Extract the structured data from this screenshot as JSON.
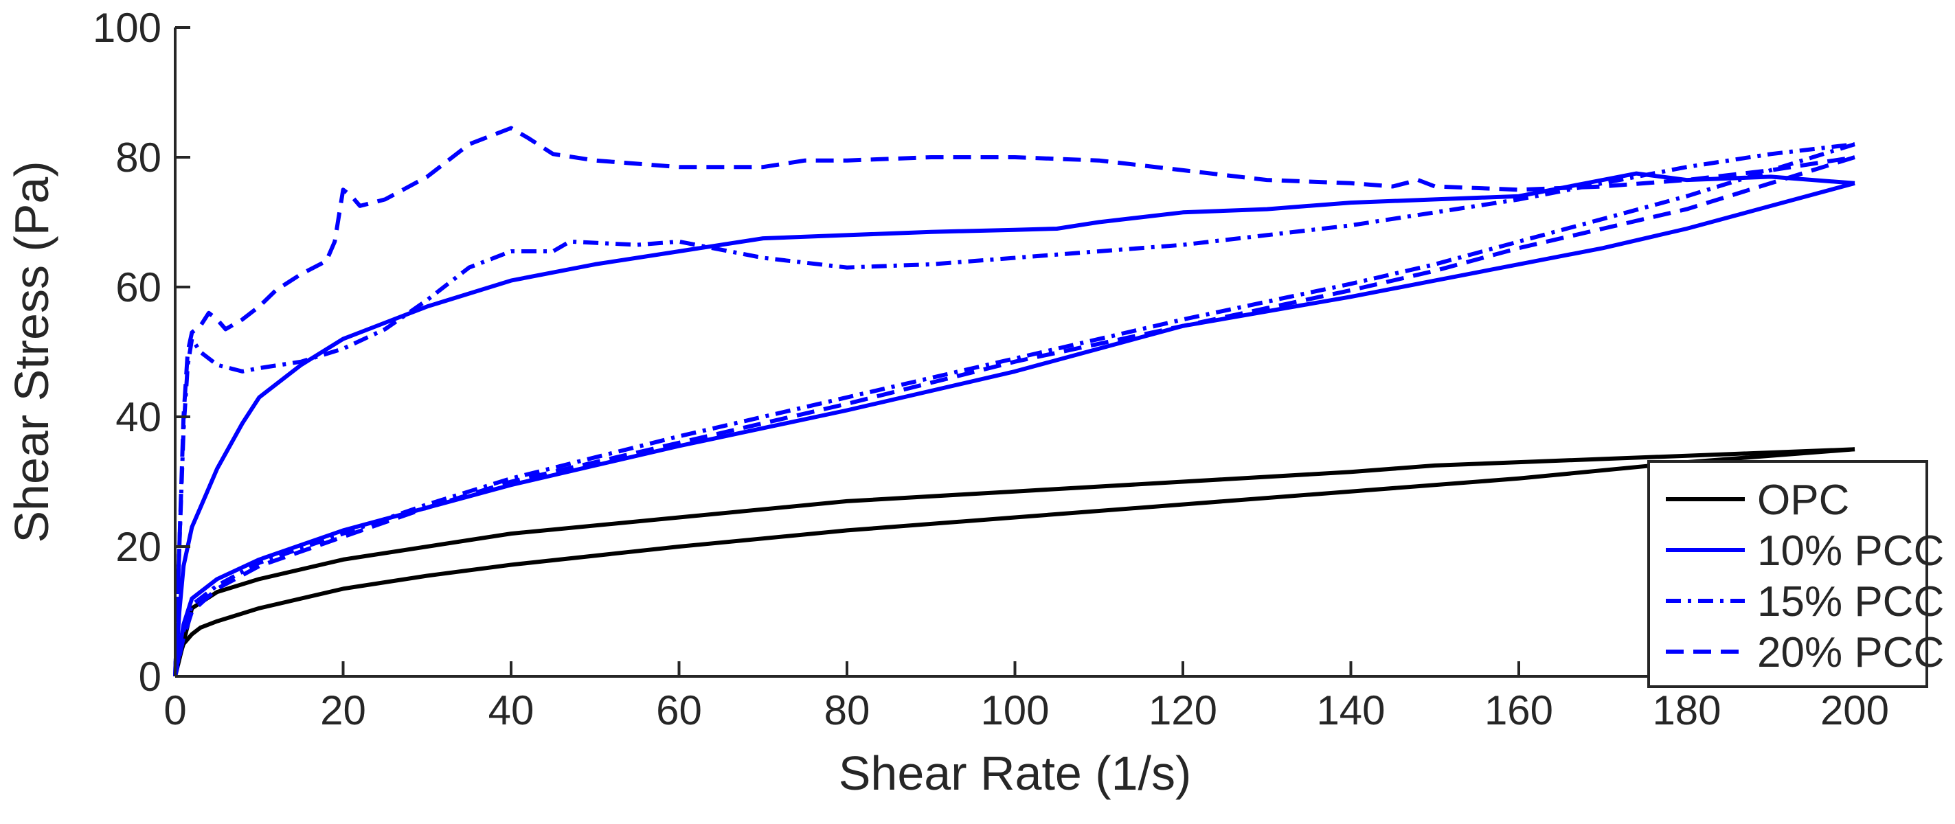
{
  "chart_data": {
    "type": "line",
    "title": "",
    "xlabel": "Shear Rate (1/s)",
    "ylabel": "Shear Stress (Pa)",
    "xlim": [
      0,
      200
    ],
    "ylim": [
      0,
      100
    ],
    "xticks": [
      0,
      20,
      40,
      60,
      80,
      100,
      120,
      140,
      160,
      180,
      200
    ],
    "yticks": [
      0,
      20,
      40,
      60,
      80,
      100
    ],
    "grid": false,
    "legend_position": "bottom-right",
    "series": [
      {
        "name": "OPC",
        "color": "#000000",
        "dash": "solid",
        "up_curve": {
          "x": [
            0,
            0.5,
            1,
            2,
            3,
            5,
            10,
            20,
            30,
            40,
            60,
            80,
            100,
            120,
            140,
            160,
            180,
            200
          ],
          "y": [
            0,
            3,
            5,
            6.5,
            7.5,
            8.5,
            10.5,
            13.5,
            15.5,
            17.2,
            20,
            22.5,
            24.5,
            26.5,
            28.5,
            30.5,
            33,
            35
          ]
        },
        "down_curve": {
          "x": [
            200,
            190,
            180,
            170,
            160,
            150,
            140,
            120,
            100,
            80,
            60,
            40,
            20,
            10,
            5,
            2,
            0
          ],
          "y": [
            35,
            34.5,
            34,
            33.5,
            33,
            32.5,
            31.5,
            30,
            28.5,
            27,
            24.5,
            22,
            18,
            15,
            13,
            10.5,
            0
          ]
        }
      },
      {
        "name": "10% PCC",
        "color": "#0000ff",
        "dash": "solid",
        "up_curve": {
          "x": [
            0,
            0.5,
            1,
            2,
            3,
            5,
            8,
            10,
            15,
            20,
            25,
            30,
            40,
            50,
            60,
            70,
            80,
            90,
            100,
            105,
            110,
            120,
            130,
            140,
            150,
            160,
            170,
            174,
            180,
            190,
            200
          ],
          "y": [
            0,
            10,
            17,
            23,
            26,
            32,
            39,
            43,
            48,
            52,
            54.5,
            57,
            61,
            63.5,
            65.5,
            67.5,
            68,
            68.5,
            68.8,
            69,
            70,
            71.5,
            72,
            73,
            73.5,
            74,
            76.5,
            77.5,
            76.5,
            77,
            76
          ]
        },
        "down_curve": {
          "x": [
            200,
            190,
            180,
            170,
            160,
            150,
            140,
            120,
            100,
            80,
            60,
            40,
            30,
            20,
            10,
            5,
            2,
            1,
            0
          ],
          "y": [
            76,
            72.5,
            69,
            66,
            63.5,
            61,
            58.5,
            54,
            47,
            41,
            35.5,
            29.5,
            26,
            22.5,
            18,
            15,
            12,
            8,
            0
          ]
        }
      },
      {
        "name": "15% PCC",
        "color": "#0000ff",
        "dash": "dashdot",
        "up_curve": {
          "x": [
            0,
            0.5,
            1,
            1.5,
            2,
            3,
            5,
            8,
            10,
            15,
            20,
            25,
            30,
            35,
            40,
            45,
            47,
            55,
            60,
            70,
            80,
            90,
            100,
            110,
            120,
            130,
            140,
            150,
            160,
            170,
            180,
            190,
            200
          ],
          "y": [
            0,
            20,
            38,
            48,
            52,
            50,
            48,
            47,
            47.5,
            48.5,
            50.5,
            53.5,
            58,
            63,
            65.5,
            65.5,
            67,
            66.5,
            67,
            64.5,
            63,
            63.5,
            64.5,
            65.5,
            66.5,
            68,
            69.5,
            71.5,
            73.5,
            76,
            78.5,
            80.5,
            82
          ]
        },
        "down_curve": {
          "x": [
            200,
            190,
            180,
            170,
            160,
            150,
            140,
            120,
            100,
            80,
            60,
            40,
            30,
            20,
            10,
            5,
            2,
            1,
            0
          ],
          "y": [
            82,
            78,
            74,
            70.5,
            67,
            63.5,
            60.5,
            55,
            49,
            43,
            37,
            30.5,
            26.5,
            22,
            17.5,
            14,
            11,
            7,
            0
          ]
        }
      },
      {
        "name": "20% PCC",
        "color": "#0000ff",
        "dash": "dashed",
        "up_curve": {
          "x": [
            0,
            0.5,
            1,
            1.5,
            2,
            3,
            4,
            5,
            6,
            8,
            10,
            12,
            15,
            18,
            19,
            20,
            21,
            22,
            25,
            30,
            35,
            38,
            40,
            42,
            45,
            50,
            60,
            70,
            75,
            80,
            90,
            100,
            110,
            120,
            130,
            140,
            145,
            148,
            150,
            160,
            170,
            180,
            190,
            200
          ],
          "y": [
            0,
            20,
            40,
            50,
            53,
            54,
            56,
            55,
            53.5,
            55,
            57,
            59.5,
            62,
            64,
            67,
            75,
            74,
            72.5,
            73.5,
            77,
            82,
            83.5,
            84.5,
            83,
            80.5,
            79.5,
            78.5,
            78.5,
            79.5,
            79.5,
            80,
            80,
            79.5,
            78,
            76.5,
            76,
            75.5,
            76.5,
            75.5,
            75,
            75.5,
            76.5,
            78,
            80
          ]
        },
        "down_curve": {
          "x": [
            200,
            190,
            180,
            170,
            160,
            150,
            140,
            120,
            100,
            80,
            60,
            40,
            30,
            20,
            10,
            5,
            2,
            1,
            0
          ],
          "y": [
            80,
            76,
            72,
            69,
            66,
            62.5,
            59.5,
            54,
            48.5,
            42,
            36,
            30,
            26,
            21.5,
            17,
            13.5,
            10,
            6,
            0
          ]
        }
      }
    ]
  }
}
